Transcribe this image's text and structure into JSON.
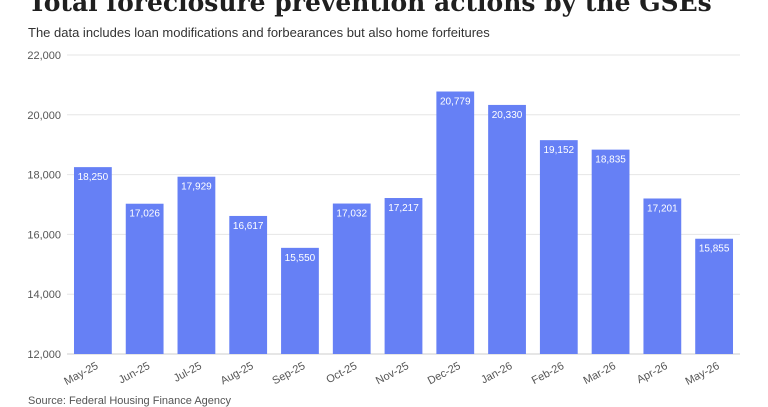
{
  "title": "Total foreclosure prevention actions by the GSEs",
  "subtitle": "The data includes loan modifications and forbearances but also home forfeitures",
  "source": "Source: Federal Housing Finance Agency",
  "colors": {
    "bar": "#6680f5",
    "grid": "#e6e6e6",
    "axis": "#cccccc"
  },
  "chart_data": {
    "type": "bar",
    "categories": [
      "May-25",
      "Jun-25",
      "Jul-25",
      "Aug-25",
      "Sep-25",
      "Oct-25",
      "Nov-25",
      "Dec-25",
      "Jan-26",
      "Feb-26",
      "Mar-26",
      "Apr-26",
      "May-26"
    ],
    "values": [
      18250,
      17026,
      17929,
      16617,
      15550,
      17032,
      17217,
      20779,
      20330,
      19152,
      18835,
      17201,
      15855
    ],
    "data_labels": [
      "18,250",
      "17,026",
      "17,929",
      "16,617",
      "15,550",
      "17,032",
      "17,217",
      "20,779",
      "20,330",
      "19,152",
      "18,835",
      "17,201",
      "15,855"
    ],
    "yticks": [
      12000,
      14000,
      16000,
      18000,
      20000,
      22000
    ],
    "ytick_labels": [
      "12,000",
      "14,000",
      "16,000",
      "18,000",
      "20,000",
      "22,000"
    ],
    "ylim": [
      12000,
      22000
    ],
    "grid": true,
    "legend": "none"
  }
}
